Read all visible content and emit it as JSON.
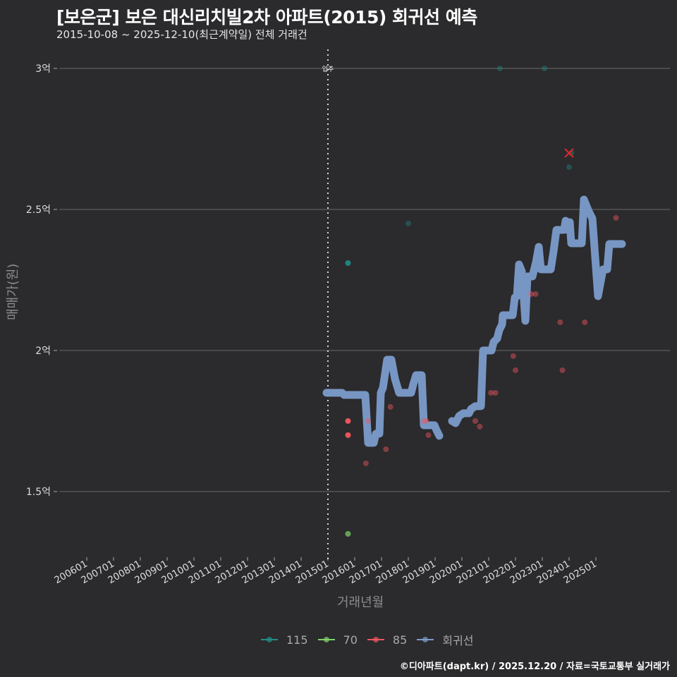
{
  "header": {
    "title": "[보은군] 보은 대신리치빌2차 아파트(2015) 회귀선 예측",
    "subtitle": "2015-10-08 ~ 2025-12-10(최근계약일) 전체 거래건"
  },
  "axes": {
    "ylabel": "매매가(원)",
    "xlabel": "거래년월",
    "annotation": "입주"
  },
  "legend": [
    {
      "label": "115",
      "color": "#1f8f88"
    },
    {
      "label": "70",
      "color": "#7fd36b"
    },
    {
      "label": "85",
      "color": "#f0565f"
    },
    {
      "label": "회귀선",
      "color": "#7b9ccb"
    }
  ],
  "caption": "©디아파트(dapt.kr) / 2025.12.20 / 자료=국토교통부 실거래가",
  "chart_data": {
    "type": "scatter+line",
    "title": "[보은군] 보은 대신리치빌2차 아파트(2015) 회귀선 예측",
    "subtitle": "2015-10-08 ~ 2025-12-10(최근계약일) 전체 거래건",
    "xlabel": "거래년월",
    "ylabel": "매매가(원)",
    "x_ticks": [
      "200601",
      "200701",
      "200801",
      "200901",
      "201001",
      "201101",
      "201201",
      "201301",
      "201401",
      "201501",
      "201601",
      "201701",
      "201801",
      "201901",
      "202001",
      "202101",
      "202201",
      "202301",
      "202401",
      "202501"
    ],
    "y_ticks": [
      {
        "value": 1.5,
        "label": "1.5억"
      },
      {
        "value": 2.0,
        "label": "2억"
      },
      {
        "value": 2.5,
        "label": "2.5억"
      },
      {
        "value": 3.0,
        "label": "3억"
      }
    ],
    "ylim": [
      1.27,
      3.08
    ],
    "grid": "horizontal",
    "legend_position": "bottom",
    "vline": {
      "x": "201501",
      "label": "입주",
      "style": "dotted"
    },
    "series": [
      {
        "name": "115",
        "color": "#1f8f88",
        "points": [
          {
            "x": "2015-10",
            "y": 2.31,
            "opacity": 0.9
          },
          {
            "x": "2018-01",
            "y": 2.45,
            "opacity": 0.4
          },
          {
            "x": "2021-06",
            "y": 3.0,
            "opacity": 0.4
          },
          {
            "x": "2023-02",
            "y": 3.0,
            "opacity": 0.4
          },
          {
            "x": "2024-01",
            "y": 2.65,
            "opacity": 0.4
          },
          {
            "x": "2024-02",
            "y": 2.7,
            "opacity": 0.4
          }
        ]
      },
      {
        "name": "70",
        "color": "#7fd36b",
        "points": [
          {
            "x": "2015-10",
            "y": 1.35,
            "opacity": 0.7
          }
        ]
      },
      {
        "name": "85",
        "color": "#f0565f",
        "points": [
          {
            "x": "2015-10",
            "y": 1.75,
            "opacity": 0.95
          },
          {
            "x": "2015-10",
            "y": 1.7,
            "opacity": 0.95
          },
          {
            "x": "2016-06",
            "y": 1.6,
            "opacity": 0.45
          },
          {
            "x": "2016-07",
            "y": 1.75,
            "opacity": 0.45
          },
          {
            "x": "2017-03",
            "y": 1.65,
            "opacity": 0.45
          },
          {
            "x": "2017-05",
            "y": 1.8,
            "opacity": 0.45
          },
          {
            "x": "2018-08",
            "y": 1.75,
            "opacity": 0.45
          },
          {
            "x": "2018-09",
            "y": 1.75,
            "opacity": 0.45
          },
          {
            "x": "2018-10",
            "y": 1.7,
            "opacity": 0.45
          },
          {
            "x": "2020-07",
            "y": 1.75,
            "opacity": 0.45
          },
          {
            "x": "2020-09",
            "y": 1.73,
            "opacity": 0.45
          },
          {
            "x": "2021-02",
            "y": 1.85,
            "opacity": 0.45
          },
          {
            "x": "2021-04",
            "y": 1.85,
            "opacity": 0.45
          },
          {
            "x": "2021-12",
            "y": 1.98,
            "opacity": 0.45
          },
          {
            "x": "2022-01",
            "y": 1.93,
            "opacity": 0.45
          },
          {
            "x": "2022-08",
            "y": 2.2,
            "opacity": 0.45
          },
          {
            "x": "2022-10",
            "y": 2.2,
            "opacity": 0.45
          },
          {
            "x": "2023-09",
            "y": 2.1,
            "opacity": 0.45
          },
          {
            "x": "2023-10",
            "y": 1.93,
            "opacity": 0.45
          },
          {
            "x": "2024-08",
            "y": 2.1,
            "opacity": 0.45
          },
          {
            "x": "2025-10",
            "y": 2.47,
            "opacity": 0.45
          }
        ]
      },
      {
        "name": "회귀선",
        "color": "#7b9ccb",
        "segments": [
          [
            [
              463,
              557
            ],
            [
              485,
              557
            ],
            [
              488,
              560
            ],
            [
              518,
              560
            ],
            [
              522,
              628
            ],
            [
              530,
              628
            ],
            [
              533,
              615
            ],
            [
              538,
              615
            ],
            [
              540,
              557
            ],
            [
              543,
              550
            ],
            [
              549,
              510
            ],
            [
              555,
              510
            ],
            [
              560,
              537
            ],
            [
              566,
              557
            ],
            [
              583,
              557
            ],
            [
              586,
              545
            ],
            [
              590,
              532
            ],
            [
              598,
              532
            ],
            [
              601,
              603
            ],
            [
              616,
              603
            ],
            [
              619,
              610
            ],
            [
              623,
              618
            ]
          ],
          [
            [
              641,
              597
            ],
            [
              646,
              600
            ],
            [
              651,
              590
            ],
            [
              657,
              586
            ],
            [
              665,
              586
            ],
            [
              668,
              580
            ],
            [
              674,
              576
            ],
            [
              682,
              576
            ],
            [
              685,
              497
            ],
            [
              697,
              497
            ],
            [
              700,
              485
            ],
            [
              705,
              480
            ],
            [
              708,
              468
            ],
            [
              712,
              460
            ],
            [
              713,
              447
            ],
            [
              727,
              447
            ],
            [
              730,
              422
            ],
            [
              733,
              420
            ],
            [
              736,
              375
            ],
            [
              740,
              385
            ],
            [
              745,
              455
            ],
            [
              748,
              392
            ],
            [
              755,
              392
            ],
            [
              760,
              372
            ],
            [
              764,
              350
            ],
            [
              767,
              382
            ],
            [
              781,
              382
            ],
            [
              785,
              356
            ],
            [
              789,
              326
            ],
            [
              800,
              326
            ],
            [
              802,
              313
            ],
            [
              805,
              326
            ],
            [
              808,
              315
            ],
            [
              810,
              345
            ],
            [
              825,
              345
            ],
            [
              828,
              283
            ],
            [
              835,
              300
            ],
            [
              840,
              310
            ],
            [
              848,
              420
            ],
            [
              855,
              382
            ],
            [
              861,
              382
            ],
            [
              864,
              346
            ],
            [
              882,
              346
            ]
          ]
        ],
        "segments_note": "pixel coordinates in 960x960 plot space"
      }
    ],
    "marker": {
      "type": "x",
      "x": "2024-01",
      "y": 2.7,
      "color": "#e0262b"
    }
  }
}
